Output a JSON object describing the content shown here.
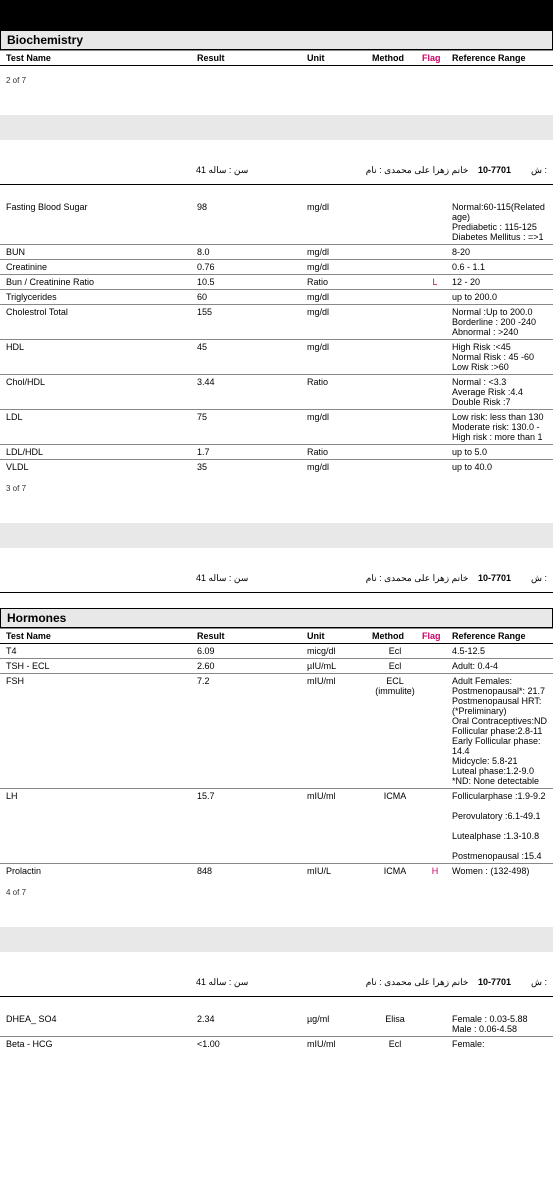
{
  "patient": {
    "age": "سن :  ساله 41",
    "name_lbl": "نام :",
    "name": "خانم زهرا علی محمدی",
    "id": "10-7701",
    "sh": "ش :"
  },
  "headers": {
    "testname": "Test Name",
    "result": "Result",
    "unit": "Unit",
    "method": "Method",
    "flag": "Flag",
    "ref": "Reference Range"
  },
  "sections": {
    "biochem": {
      "title": "Biochemistry"
    },
    "hormones": {
      "title": "Hormones"
    }
  },
  "pages": {
    "p2": "2   of   7",
    "p3": "3   of   7",
    "p4": "4   of   7"
  },
  "biochem_rows": [
    {
      "name": "Fasting Blood Sugar",
      "result": "98",
      "unit": "mg/dl",
      "method": "",
      "flag": "",
      "ref": "Normal:60-115(Related age)\nPrediabetic : 115-125\nDiabetes Mellitus : =>1"
    },
    {
      "name": "BUN",
      "result": "8.0",
      "unit": "mg/dl",
      "method": "",
      "flag": "",
      "ref": "8-20"
    },
    {
      "name": "Creatinine",
      "result": "0.76",
      "unit": "mg/dl",
      "method": "",
      "flag": "",
      "ref": "0.6 - 1.1"
    },
    {
      "name": "Bun / Creatinine Ratio",
      "result": "10.5",
      "unit": "Ratio",
      "method": "",
      "flag": "L",
      "ref": "12 - 20"
    },
    {
      "name": "Triglycerides",
      "result": "60",
      "unit": "mg/dl",
      "method": "",
      "flag": "",
      "ref": "up to 200.0"
    },
    {
      "name": "Cholestrol Total",
      "result": "155",
      "unit": "mg/dl",
      "method": "",
      "flag": "",
      "ref": "Normal :Up to 200.0\nBorderline : 200 -240\nAbnormal : >240"
    },
    {
      "name": "HDL",
      "result": "45",
      "unit": "mg/dl",
      "method": "",
      "flag": "",
      "ref": "High Risk :<45\nNormal Risk : 45 -60\nLow Risk :>60"
    },
    {
      "name": "Chol/HDL",
      "result": "3.44",
      "unit": "Ratio",
      "method": "",
      "flag": "",
      "ref": "Normal        : <3.3\nAverage Risk :4.4\nDouble Risk   :7"
    },
    {
      "name": "LDL",
      "result": "75",
      "unit": "mg/dl",
      "method": "",
      "flag": "",
      "ref": "Low risk: less than 130\nModerate risk: 130.0 -\nHigh risk : more than 1"
    },
    {
      "name": "LDL/HDL",
      "result": "1.7",
      "unit": "Ratio",
      "method": "",
      "flag": "",
      "ref": "up to 5.0"
    },
    {
      "name": "VLDL",
      "result": "35",
      "unit": "mg/dl",
      "method": "",
      "flag": "",
      "ref": "up to 40.0"
    }
  ],
  "hormone_rows": [
    {
      "name": "T4",
      "result": "6.09",
      "unit": "micg/dl",
      "method": "Ecl",
      "flag": "",
      "ref": "4.5-12.5"
    },
    {
      "name": "TSH - ECL",
      "result": "2.60",
      "unit": "µIU/mL",
      "method": "Ecl",
      "flag": "",
      "ref": "Adult: 0.4-4"
    },
    {
      "name": "FSH",
      "result": "7.2",
      "unit": "mIU/ml",
      "method": "ECL (immulite)",
      "flag": "",
      "ref": "Adult Females:\nPostmenopausal*: 21.7\nPostmenopausal HRT:\n(*Preliminary)\nOral Contraceptives:ND\nFollicular phase:2.8-11\nEarly Follicular phase:\n14.4\nMidcycle: 5.8-21\nLuteal phase:1.2-9.0\n*ND: None detectable"
    },
    {
      "name": "LH",
      "result": "15.7",
      "unit": "mIU/ml",
      "method": "ICMA",
      "flag": "",
      "ref": "Follicularphase :1.9-9.2\n\nPerovulatory :6.1-49.1\n\nLutealphase :1.3-10.8\n\nPostmenopausal :15.4"
    },
    {
      "name": "Prolactin",
      "result": "848",
      "unit": "mIU/L",
      "method": "ICMA",
      "flag": "H",
      "ref": "Women : (132-498)"
    }
  ],
  "extra_rows": [
    {
      "name": "DHEA_ SO4",
      "result": "2.34",
      "unit": "µg/ml",
      "method": "Elisa",
      "flag": "",
      "ref": "Female : 0.03-5.88\nMale : 0.06-4.58"
    },
    {
      "name": "Beta - HCG",
      "result": "<1.00",
      "unit": "mIU/ml",
      "method": "Ecl",
      "flag": "",
      "ref": "Female:"
    }
  ]
}
